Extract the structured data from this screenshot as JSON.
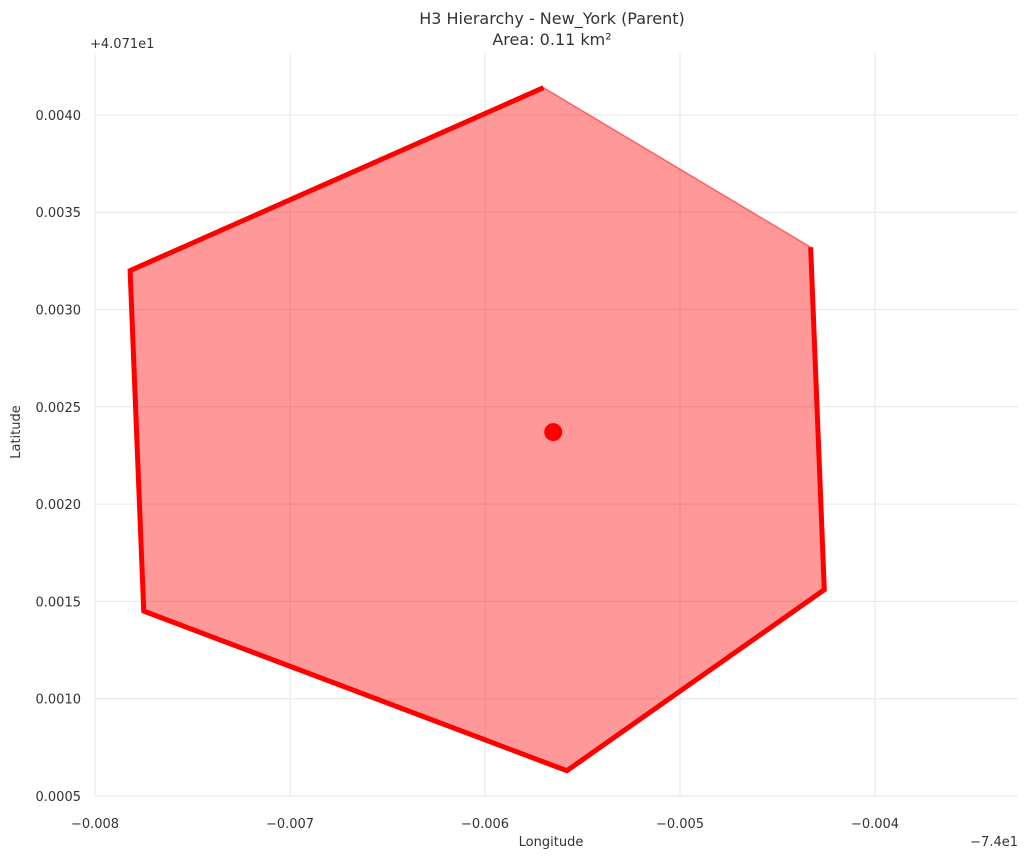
{
  "chart_data": {
    "type": "line",
    "title": "H3 Hierarchy - New_York (Parent)",
    "subtitle": "Area: 0.11 km²",
    "xlabel": "Longitude",
    "ylabel": "Latitude",
    "x_offset_label": "−7.4e1",
    "y_offset_label": "+4.071e1",
    "xlim": [
      -0.008,
      -0.0035
    ],
    "ylim": [
      0.0005,
      0.0043
    ],
    "x_ticks": [
      -0.008,
      -0.007,
      -0.006,
      -0.005,
      -0.004
    ],
    "x_tick_labels": [
      "−0.008",
      "−0.007",
      "−0.006",
      "−0.005",
      "−0.004"
    ],
    "y_ticks": [
      0.0005,
      0.001,
      0.0015,
      0.002,
      0.0025,
      0.003,
      0.0035,
      0.004
    ],
    "y_tick_labels": [
      "0.0005",
      "0.0010",
      "0.0015",
      "0.0020",
      "0.0025",
      "0.0030",
      "0.0035",
      "0.0040"
    ],
    "grid": true,
    "hexagon": {
      "fill_color": "#ff0000",
      "fill_opacity": 0.4,
      "edge_color": "#ff0000",
      "boundary_x": [
        -0.0057,
        -0.00433,
        -0.00426,
        -0.00558,
        -0.00775,
        -0.00782
      ],
      "boundary_y": [
        0.00414,
        0.00332,
        0.00156,
        0.00063,
        0.00145,
        0.0032
      ],
      "thick_outline_x": [
        -0.00433,
        -0.00426,
        -0.00558,
        -0.00775,
        -0.00782,
        -0.0057
      ],
      "thick_outline_y": [
        0.00332,
        0.00156,
        0.00063,
        0.00145,
        0.0032,
        0.00414
      ]
    },
    "center_point": {
      "x": -0.00565,
      "y": 0.00237,
      "color": "#ff0000"
    }
  }
}
